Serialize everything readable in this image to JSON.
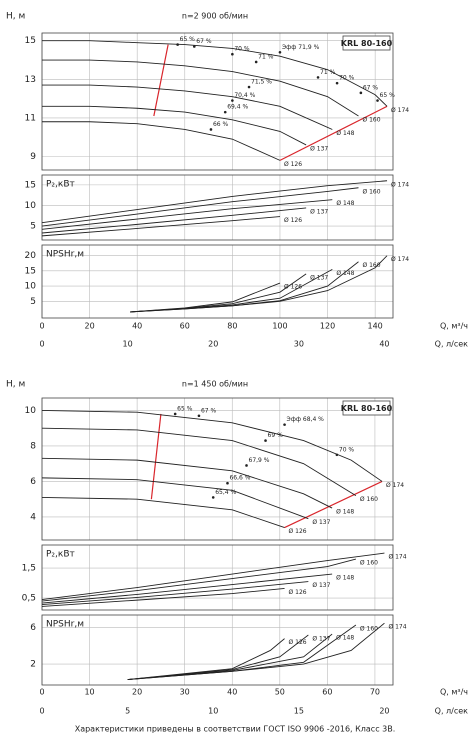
{
  "chart_data": [
    {
      "type": "line",
      "title": "n=2 900 об/мин",
      "model": "KRL 80-160",
      "xlabel": "Q, м³/ч",
      "x2label": "Q, л/сек",
      "xlim": [
        0,
        147.5
      ],
      "xticks": [
        0,
        20,
        40,
        60,
        80,
        100,
        120,
        140
      ],
      "x2lim": [
        0,
        41
      ],
      "x2ticks": [
        0,
        10,
        20,
        30,
        40
      ],
      "subplots": [
        {
          "ylabel": "H, м",
          "ylim": [
            8.3,
            15.4
          ],
          "yticks": [
            9,
            11,
            13,
            15
          ],
          "series": [
            {
              "name": "Ø 174",
              "color": "#222",
              "x": [
                0,
                20,
                40,
                60,
                80,
                100,
                120,
                140,
                145
              ],
              "values": [
                15,
                15,
                14.9,
                14.8,
                14.6,
                14.2,
                13.5,
                12.2,
                11.6
              ]
            },
            {
              "name": "Ø 160",
              "color": "#222",
              "x": [
                0,
                20,
                40,
                60,
                80,
                100,
                120,
                133
              ],
              "values": [
                14,
                14,
                13.9,
                13.7,
                13.4,
                12.9,
                12.1,
                11.1
              ]
            },
            {
              "name": "Ø 148",
              "color": "#222",
              "x": [
                0,
                20,
                40,
                60,
                80,
                100,
                122
              ],
              "values": [
                12.7,
                12.7,
                12.6,
                12.4,
                12.1,
                11.6,
                10.4
              ]
            },
            {
              "name": "Ø 137",
              "color": "#222",
              "x": [
                0,
                20,
                40,
                60,
                80,
                100,
                111
              ],
              "values": [
                11.6,
                11.6,
                11.5,
                11.3,
                10.9,
                10.3,
                9.6
              ]
            },
            {
              "name": "Ø 126",
              "color": "#222",
              "x": [
                0,
                20,
                40,
                60,
                80,
                100
              ],
              "values": [
                10.8,
                10.8,
                10.7,
                10.4,
                9.9,
                8.8
              ]
            }
          ],
          "limits": [
            {
              "color": "#d9262c",
              "x": [
                53,
                47
              ],
              "values": [
                14.8,
                11.1
              ]
            },
            {
              "color": "#d9262c",
              "x": [
                100,
                145
              ],
              "values": [
                8.8,
                11.6
              ]
            }
          ],
          "annotations": [
            {
              "text": "65 %",
              "x": 57,
              "y": 14.8
            },
            {
              "text": "67 %",
              "x": 64,
              "y": 14.7
            },
            {
              "text": "70 %",
              "x": 80,
              "y": 14.3
            },
            {
              "text": "71 %",
              "x": 90,
              "y": 13.9
            },
            {
              "text": "Эфф 71,9 %",
              "x": 100,
              "y": 14.4
            },
            {
              "text": "71,5 %",
              "x": 87,
              "y": 12.6
            },
            {
              "text": "70,4 %",
              "x": 80,
              "y": 11.9
            },
            {
              "text": "69,4 %",
              "x": 77,
              "y": 11.3
            },
            {
              "text": "66 %",
              "x": 71,
              "y": 10.4
            },
            {
              "text": "71 %",
              "x": 116,
              "y": 13.1
            },
            {
              "text": "70 %",
              "x": 124,
              "y": 12.8
            },
            {
              "text": "67 %",
              "x": 134,
              "y": 12.3
            },
            {
              "text": "65 %",
              "x": 141,
              "y": 11.9
            }
          ]
        },
        {
          "ylabel": "P₂,кВт",
          "ylim": [
            1.6,
            17.4
          ],
          "yticks": [
            5,
            10,
            15
          ],
          "series": [
            {
              "name": "Ø 174",
              "color": "#222",
              "x": [
                0,
                40,
                80,
                120,
                145
              ],
              "values": [
                5.8,
                9,
                12.2,
                14.8,
                16
              ]
            },
            {
              "name": "Ø 160",
              "color": "#222",
              "x": [
                0,
                40,
                80,
                120,
                133
              ],
              "values": [
                5,
                7.9,
                10.9,
                13.4,
                14.3
              ]
            },
            {
              "name": "Ø 148",
              "color": "#222",
              "x": [
                0,
                40,
                80,
                122
              ],
              "values": [
                4.2,
                6.7,
                9.2,
                11.4
              ]
            },
            {
              "name": "Ø 137",
              "color": "#222",
              "x": [
                0,
                40,
                80,
                111
              ],
              "values": [
                3.3,
                5.4,
                7.6,
                9.4
              ]
            },
            {
              "name": "Ø 126",
              "color": "#222",
              "x": [
                0,
                40,
                80,
                100
              ],
              "values": [
                2.6,
                4.4,
                6.3,
                7.3
              ]
            }
          ]
        },
        {
          "ylabel": "NPSHr,м",
          "ylim": [
            -0.5,
            23.5
          ],
          "yticks": [
            5,
            10,
            15,
            20
          ],
          "series": [
            {
              "name": "Ø 174",
              "color": "#222",
              "x": [
                37,
                60,
                80,
                100,
                120,
                140,
                145
              ],
              "values": [
                1.5,
                2.5,
                3.5,
                5,
                8.5,
                16,
                20
              ]
            },
            {
              "name": "Ø 160",
              "color": "#222",
              "x": [
                37,
                60,
                80,
                100,
                120,
                133
              ],
              "values": [
                1.5,
                2.5,
                3.5,
                5.2,
                10,
                18
              ]
            },
            {
              "name": "Ø 148",
              "color": "#222",
              "x": [
                37,
                60,
                80,
                100,
                122
              ],
              "values": [
                1.5,
                2.6,
                3.8,
                6,
                15.5
              ]
            },
            {
              "name": "Ø 137",
              "color": "#222",
              "x": [
                37,
                60,
                80,
                100,
                111
              ],
              "values": [
                1.5,
                2.7,
                4.2,
                8,
                14
              ]
            },
            {
              "name": "Ø 126",
              "color": "#222",
              "x": [
                37,
                60,
                80,
                100
              ],
              "values": [
                1.5,
                2.8,
                4.8,
                11
              ]
            }
          ]
        }
      ]
    },
    {
      "type": "line",
      "title": "n=1 450 об/мин",
      "model": "KRL 80-160",
      "xlabel": "Q, м³/ч",
      "x2label": "Q, л/сек",
      "xlim": [
        0,
        73.8
      ],
      "xticks": [
        0,
        10,
        20,
        30,
        40,
        50,
        60,
        70
      ],
      "x2lim": [
        0,
        20.5
      ],
      "x2ticks": [
        0,
        5,
        10,
        15,
        20
      ],
      "subplots": [
        {
          "ylabel": "H, м",
          "ylim": [
            2.7,
            10.7
          ],
          "yticks": [
            4,
            6,
            8,
            10
          ],
          "series": [
            {
              "name": "Ø 174",
              "color": "#222",
              "x": [
                0,
                20,
                40,
                55,
                65,
                71.5
              ],
              "values": [
                10,
                9.9,
                9.3,
                8.3,
                7.2,
                6
              ]
            },
            {
              "name": "Ø 160",
              "color": "#222",
              "x": [
                0,
                20,
                40,
                55,
                66
              ],
              "values": [
                9,
                8.9,
                8.3,
                7,
                5.2
              ]
            },
            {
              "name": "Ø 148",
              "color": "#222",
              "x": [
                0,
                20,
                40,
                55,
                61
              ],
              "values": [
                7.3,
                7.2,
                6.6,
                5.3,
                4.5
              ]
            },
            {
              "name": "Ø 137",
              "color": "#222",
              "x": [
                0,
                20,
                40,
                56
              ],
              "values": [
                6.2,
                6.1,
                5.5,
                3.9
              ]
            },
            {
              "name": "Ø 126",
              "color": "#222",
              "x": [
                0,
                20,
                40,
                51
              ],
              "values": [
                5.1,
                5,
                4.4,
                3.4
              ]
            }
          ],
          "limits": [
            {
              "color": "#d9262c",
              "x": [
                25,
                23
              ],
              "values": [
                9.8,
                5
              ]
            },
            {
              "color": "#d9262c",
              "x": [
                51,
                71.5
              ],
              "values": [
                3.4,
                6
              ]
            }
          ],
          "annotations": [
            {
              "text": "65 %",
              "x": 28,
              "y": 9.8
            },
            {
              "text": "67 %",
              "x": 33,
              "y": 9.7
            },
            {
              "text": "Эфф 68,4 %",
              "x": 51,
              "y": 9.2
            },
            {
              "text": "69 %",
              "x": 47,
              "y": 8.3
            },
            {
              "text": "70 %",
              "x": 62,
              "y": 7.5
            },
            {
              "text": "67,9 %",
              "x": 43,
              "y": 6.9
            },
            {
              "text": "66,6 %",
              "x": 39,
              "y": 5.9
            },
            {
              "text": "65,4 %",
              "x": 36,
              "y": 5.1
            }
          ]
        },
        {
          "ylabel": "P₂,кВт",
          "ylim": [
            0.1,
            2.27
          ],
          "yticks": [
            {
              "value": 0.5,
              "label": "0,5"
            },
            {
              "value": 1.5,
              "label": "1,5"
            }
          ],
          "series": [
            {
              "name": "Ø 174",
              "color": "#222",
              "x": [
                0,
                20,
                40,
                60,
                72
              ],
              "values": [
                0.45,
                0.85,
                1.3,
                1.75,
                2
              ]
            },
            {
              "name": "Ø 160",
              "color": "#222",
              "x": [
                0,
                20,
                40,
                60,
                66
              ],
              "values": [
                0.4,
                0.75,
                1.15,
                1.55,
                1.8
              ]
            },
            {
              "name": "Ø 148",
              "color": "#222",
              "x": [
                0,
                20,
                40,
                61
              ],
              "values": [
                0.33,
                0.62,
                0.95,
                1.3
              ]
            },
            {
              "name": "Ø 137",
              "color": "#222",
              "x": [
                0,
                20,
                40,
                56
              ],
              "values": [
                0.28,
                0.52,
                0.8,
                1.05
              ]
            },
            {
              "name": "Ø 126",
              "color": "#222",
              "x": [
                0,
                20,
                40,
                51
              ],
              "values": [
                0.22,
                0.43,
                0.65,
                0.82
              ]
            }
          ]
        },
        {
          "ylabel": "NPSHr,м",
          "ylim": [
            -0.3,
            7.4
          ],
          "yticks": [
            2,
            6
          ],
          "series": [
            {
              "name": "Ø 174",
              "color": "#222",
              "x": [
                18,
                40,
                55,
                65,
                72
              ],
              "values": [
                0.3,
                1.2,
                2,
                3.5,
                6.5
              ]
            },
            {
              "name": "Ø 160",
              "color": "#222",
              "x": [
                18,
                40,
                55,
                66
              ],
              "values": [
                0.3,
                1.2,
                2.2,
                6.3
              ]
            },
            {
              "name": "Ø 148",
              "color": "#222",
              "x": [
                18,
                40,
                55,
                61
              ],
              "values": [
                0.3,
                1.3,
                2.8,
                5.3
              ]
            },
            {
              "name": "Ø 137",
              "color": "#222",
              "x": [
                18,
                40,
                50,
                56
              ],
              "values": [
                0.3,
                1.4,
                2.8,
                5.2
              ]
            },
            {
              "name": "Ø 126",
              "color": "#222",
              "x": [
                18,
                40,
                48,
                51
              ],
              "values": [
                0.3,
                1.5,
                3.5,
                4.8
              ]
            }
          ]
        }
      ]
    }
  ],
  "footer": "Характеристики приведены в соответствии  ГОСТ ISO 9906 -2016, Класс 3В."
}
